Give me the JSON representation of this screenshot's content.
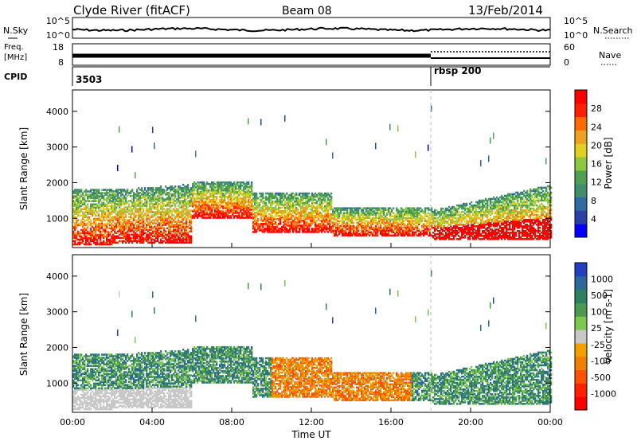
{
  "header": {
    "station": "Clyde River (fitACF)",
    "beam": "Beam 08",
    "date": "13/Feb/2014"
  },
  "top_panels": {
    "nsky_label": "N.Sky",
    "nsky_ticks": [
      "10^5",
      "10^0"
    ],
    "nsearch_label": "N.Search",
    "nsearch_ticks": [
      "10^5",
      "10^0"
    ],
    "freq_label_1": "Freq.",
    "freq_label_2": "[MHz]",
    "freq_ticks": [
      "18",
      "8"
    ],
    "nave_label": "Nave",
    "nave_ticks": [
      "60",
      "0"
    ],
    "cpid_label": "CPID",
    "cpid_1": "3503",
    "cpid_2": "rbsp 200"
  },
  "x_axis": {
    "label": "Time UT",
    "ticks": [
      "00:00",
      "04:00",
      "08:00",
      "12:00",
      "16:00",
      "20:00",
      "00:00"
    ]
  },
  "chart_data": [
    {
      "type": "heatmap",
      "name": "power",
      "ylabel": "Slant Range [km]",
      "yticks": [
        "4000",
        "3000",
        "2000",
        "1000"
      ],
      "colorbar_label": "Power [dB]",
      "colorbar_ticks": [
        "28",
        "24",
        "20",
        "16",
        "12",
        "8",
        "4"
      ],
      "colors": [
        "#0000ff",
        "#2a3fa8",
        "#2f6aa0",
        "#3f8f6a",
        "#4fa050",
        "#8cc840",
        "#e0d020",
        "#f0a020",
        "#ff6a00",
        "#ff2000",
        "#ff0000"
      ]
    },
    {
      "type": "heatmap",
      "name": "velocity",
      "ylabel": "Slant Range [km]",
      "yticks": [
        "4000",
        "3000",
        "2000",
        "1000"
      ],
      "colorbar_label": "Velocity [m s-1]",
      "colorbar_ticks": [
        "1000",
        "500",
        "100",
        "25",
        "-25",
        "-100",
        "-500",
        "-1000"
      ],
      "colors": [
        "#2040c0",
        "#2a6a9a",
        "#2f8060",
        "#4a9a50",
        "#7cc850",
        "#c8c8c8",
        "#f0a000",
        "#f08000",
        "#ff5000",
        "#ff2000",
        "#ff0000"
      ]
    }
  ]
}
